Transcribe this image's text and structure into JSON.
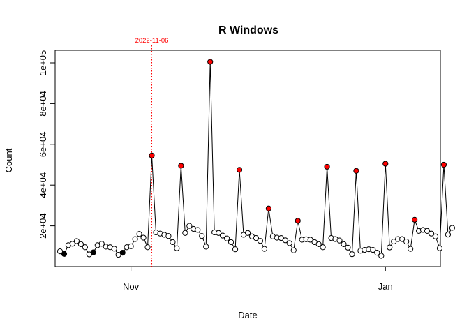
{
  "chart_data": {
    "type": "line",
    "title": "R Windows",
    "xlabel": "Date",
    "ylabel": "Count",
    "x_start": "2022-10-15",
    "x_end": "2023-01-13",
    "x_ticks": [
      {
        "date": "2022-11-01",
        "label": "Nov"
      },
      {
        "date": "2023-01-01",
        "label": "Jan"
      }
    ],
    "y_ticks": [
      {
        "value": 20000,
        "label": "2e+04"
      },
      {
        "value": 40000,
        "label": "4e+04"
      },
      {
        "value": 60000,
        "label": "6e+04"
      },
      {
        "value": 80000,
        "label": "8e+04"
      },
      {
        "value": 100000,
        "label": "1e+05"
      }
    ],
    "ylim": [
      0,
      100000
    ],
    "grid": false,
    "annotation": {
      "date": "2022-11-06",
      "label": "2022-11-06",
      "color": "#ff0000"
    },
    "colors": {
      "line": "#000000",
      "highlight": "#ff0000",
      "filled": "#000000",
      "open": "#ffffff"
    },
    "values": [
      7500,
      6200,
      10500,
      11200,
      12500,
      11000,
      9500,
      6000,
      7000,
      10500,
      11200,
      9800,
      9500,
      8800,
      5800,
      6800,
      9500,
      10000,
      13500,
      16000,
      14200,
      9500,
      54500,
      16800,
      16200,
      15600,
      15000,
      12000,
      9000,
      49500,
      16500,
      20000,
      18500,
      18000,
      15000,
      9800,
      100500,
      16800,
      16500,
      15200,
      13800,
      12000,
      8500,
      47500,
      15600,
      16500,
      14800,
      14000,
      12600,
      8700,
      28500,
      14800,
      14200,
      14000,
      12900,
      11500,
      8000,
      22500,
      13200,
      13400,
      13200,
      12000,
      11000,
      9500,
      49000,
      14000,
      13500,
      12800,
      11000,
      9300,
      6100,
      47000,
      7800,
      8200,
      8500,
      8200,
      6800,
      5300,
      50500,
      9400,
      12300,
      13500,
      13500,
      12300,
      8700,
      23000,
      17500,
      18000,
      17500,
      16200,
      14800,
      9000,
      50000,
      15700,
      19000
    ],
    "point_styles": [
      "open",
      "filled",
      "open",
      "open",
      "open",
      "open",
      "open",
      "open",
      "filled",
      "open",
      "open",
      "open",
      "open",
      "open",
      "open",
      "filled",
      "open",
      "open",
      "open",
      "open",
      "open",
      "open",
      "red",
      "open",
      "open",
      "open",
      "open",
      "open",
      "open",
      "red",
      "open",
      "open",
      "open",
      "open",
      "open",
      "open",
      "red",
      "open",
      "open",
      "open",
      "open",
      "open",
      "open",
      "red",
      "open",
      "open",
      "open",
      "open",
      "open",
      "open",
      "red",
      "open",
      "open",
      "open",
      "open",
      "open",
      "open",
      "red",
      "open",
      "open",
      "open",
      "open",
      "open",
      "open",
      "red",
      "open",
      "open",
      "open",
      "open",
      "open",
      "open",
      "red",
      "open",
      "open",
      "open",
      "open",
      "open",
      "open",
      "red",
      "open",
      "open",
      "open",
      "open",
      "open",
      "open",
      "red",
      "open",
      "open",
      "open",
      "open",
      "open",
      "open",
      "red",
      "open",
      "open"
    ]
  }
}
